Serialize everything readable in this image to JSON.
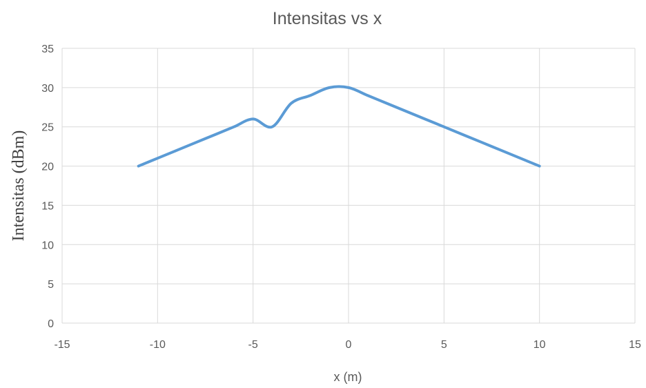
{
  "chart_data": {
    "type": "line",
    "title": "Intensitas vs x",
    "xlabel": "x (m)",
    "ylabel": "Intensitas (dBm)",
    "xlim": [
      -15,
      15
    ],
    "ylim": [
      0,
      35
    ],
    "xticks": [
      -15,
      -10,
      -5,
      0,
      5,
      10,
      15
    ],
    "yticks": [
      0,
      5,
      10,
      15,
      20,
      25,
      30,
      35
    ],
    "grid": true,
    "legend": "none",
    "series": [
      {
        "color": "#5b9bd5",
        "x": [
          -11,
          -10,
          -9,
          -8,
          -7,
          -6,
          -5,
          -4,
          -3,
          -2,
          -1,
          0,
          1,
          2,
          3,
          4,
          5,
          6,
          7,
          8,
          9,
          10
        ],
        "y": [
          20,
          21,
          22,
          23,
          24,
          25,
          26,
          25,
          28,
          29,
          30,
          30,
          29,
          28,
          27,
          26,
          25,
          24,
          23,
          22,
          21,
          20
        ]
      }
    ]
  }
}
